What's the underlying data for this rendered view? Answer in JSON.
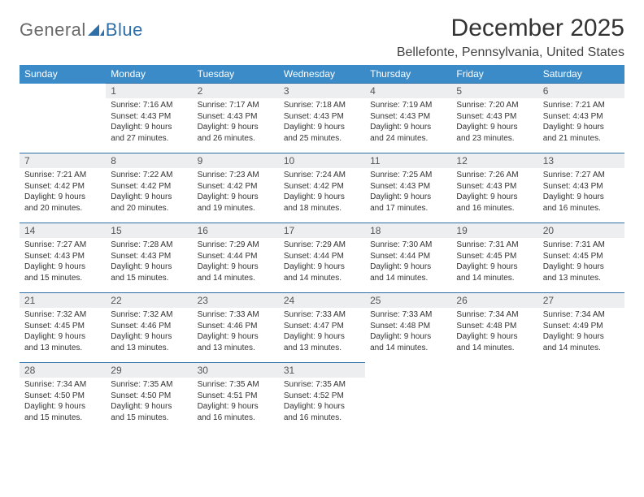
{
  "brand": {
    "part1": "General",
    "part2": "Blue"
  },
  "title": "December 2025",
  "location": "Bellefonte, Pennsylvania, United States",
  "columns": [
    "Sunday",
    "Monday",
    "Tuesday",
    "Wednesday",
    "Thursday",
    "Friday",
    "Saturday"
  ],
  "colors": {
    "header_bg": "#3b8bc9",
    "header_text": "#ffffff",
    "daynum_bg": "#eceeef",
    "rule": "#2f6fa8",
    "body_text": "#333333"
  },
  "weeks": [
    [
      {
        "blank": true
      },
      {
        "n": "1",
        "sr": "Sunrise: 7:16 AM",
        "ss": "Sunset: 4:43 PM",
        "d1": "Daylight: 9 hours",
        "d2": "and 27 minutes."
      },
      {
        "n": "2",
        "sr": "Sunrise: 7:17 AM",
        "ss": "Sunset: 4:43 PM",
        "d1": "Daylight: 9 hours",
        "d2": "and 26 minutes."
      },
      {
        "n": "3",
        "sr": "Sunrise: 7:18 AM",
        "ss": "Sunset: 4:43 PM",
        "d1": "Daylight: 9 hours",
        "d2": "and 25 minutes."
      },
      {
        "n": "4",
        "sr": "Sunrise: 7:19 AM",
        "ss": "Sunset: 4:43 PM",
        "d1": "Daylight: 9 hours",
        "d2": "and 24 minutes."
      },
      {
        "n": "5",
        "sr": "Sunrise: 7:20 AM",
        "ss": "Sunset: 4:43 PM",
        "d1": "Daylight: 9 hours",
        "d2": "and 23 minutes."
      },
      {
        "n": "6",
        "sr": "Sunrise: 7:21 AM",
        "ss": "Sunset: 4:43 PM",
        "d1": "Daylight: 9 hours",
        "d2": "and 21 minutes."
      }
    ],
    [
      {
        "n": "7",
        "sr": "Sunrise: 7:21 AM",
        "ss": "Sunset: 4:42 PM",
        "d1": "Daylight: 9 hours",
        "d2": "and 20 minutes."
      },
      {
        "n": "8",
        "sr": "Sunrise: 7:22 AM",
        "ss": "Sunset: 4:42 PM",
        "d1": "Daylight: 9 hours",
        "d2": "and 20 minutes."
      },
      {
        "n": "9",
        "sr": "Sunrise: 7:23 AM",
        "ss": "Sunset: 4:42 PM",
        "d1": "Daylight: 9 hours",
        "d2": "and 19 minutes."
      },
      {
        "n": "10",
        "sr": "Sunrise: 7:24 AM",
        "ss": "Sunset: 4:42 PM",
        "d1": "Daylight: 9 hours",
        "d2": "and 18 minutes."
      },
      {
        "n": "11",
        "sr": "Sunrise: 7:25 AM",
        "ss": "Sunset: 4:43 PM",
        "d1": "Daylight: 9 hours",
        "d2": "and 17 minutes."
      },
      {
        "n": "12",
        "sr": "Sunrise: 7:26 AM",
        "ss": "Sunset: 4:43 PM",
        "d1": "Daylight: 9 hours",
        "d2": "and 16 minutes."
      },
      {
        "n": "13",
        "sr": "Sunrise: 7:27 AM",
        "ss": "Sunset: 4:43 PM",
        "d1": "Daylight: 9 hours",
        "d2": "and 16 minutes."
      }
    ],
    [
      {
        "n": "14",
        "sr": "Sunrise: 7:27 AM",
        "ss": "Sunset: 4:43 PM",
        "d1": "Daylight: 9 hours",
        "d2": "and 15 minutes."
      },
      {
        "n": "15",
        "sr": "Sunrise: 7:28 AM",
        "ss": "Sunset: 4:43 PM",
        "d1": "Daylight: 9 hours",
        "d2": "and 15 minutes."
      },
      {
        "n": "16",
        "sr": "Sunrise: 7:29 AM",
        "ss": "Sunset: 4:44 PM",
        "d1": "Daylight: 9 hours",
        "d2": "and 14 minutes."
      },
      {
        "n": "17",
        "sr": "Sunrise: 7:29 AM",
        "ss": "Sunset: 4:44 PM",
        "d1": "Daylight: 9 hours",
        "d2": "and 14 minutes."
      },
      {
        "n": "18",
        "sr": "Sunrise: 7:30 AM",
        "ss": "Sunset: 4:44 PM",
        "d1": "Daylight: 9 hours",
        "d2": "and 14 minutes."
      },
      {
        "n": "19",
        "sr": "Sunrise: 7:31 AM",
        "ss": "Sunset: 4:45 PM",
        "d1": "Daylight: 9 hours",
        "d2": "and 14 minutes."
      },
      {
        "n": "20",
        "sr": "Sunrise: 7:31 AM",
        "ss": "Sunset: 4:45 PM",
        "d1": "Daylight: 9 hours",
        "d2": "and 13 minutes."
      }
    ],
    [
      {
        "n": "21",
        "sr": "Sunrise: 7:32 AM",
        "ss": "Sunset: 4:45 PM",
        "d1": "Daylight: 9 hours",
        "d2": "and 13 minutes."
      },
      {
        "n": "22",
        "sr": "Sunrise: 7:32 AM",
        "ss": "Sunset: 4:46 PM",
        "d1": "Daylight: 9 hours",
        "d2": "and 13 minutes."
      },
      {
        "n": "23",
        "sr": "Sunrise: 7:33 AM",
        "ss": "Sunset: 4:46 PM",
        "d1": "Daylight: 9 hours",
        "d2": "and 13 minutes."
      },
      {
        "n": "24",
        "sr": "Sunrise: 7:33 AM",
        "ss": "Sunset: 4:47 PM",
        "d1": "Daylight: 9 hours",
        "d2": "and 13 minutes."
      },
      {
        "n": "25",
        "sr": "Sunrise: 7:33 AM",
        "ss": "Sunset: 4:48 PM",
        "d1": "Daylight: 9 hours",
        "d2": "and 14 minutes."
      },
      {
        "n": "26",
        "sr": "Sunrise: 7:34 AM",
        "ss": "Sunset: 4:48 PM",
        "d1": "Daylight: 9 hours",
        "d2": "and 14 minutes."
      },
      {
        "n": "27",
        "sr": "Sunrise: 7:34 AM",
        "ss": "Sunset: 4:49 PM",
        "d1": "Daylight: 9 hours",
        "d2": "and 14 minutes."
      }
    ],
    [
      {
        "n": "28",
        "sr": "Sunrise: 7:34 AM",
        "ss": "Sunset: 4:50 PM",
        "d1": "Daylight: 9 hours",
        "d2": "and 15 minutes."
      },
      {
        "n": "29",
        "sr": "Sunrise: 7:35 AM",
        "ss": "Sunset: 4:50 PM",
        "d1": "Daylight: 9 hours",
        "d2": "and 15 minutes."
      },
      {
        "n": "30",
        "sr": "Sunrise: 7:35 AM",
        "ss": "Sunset: 4:51 PM",
        "d1": "Daylight: 9 hours",
        "d2": "and 16 minutes."
      },
      {
        "n": "31",
        "sr": "Sunrise: 7:35 AM",
        "ss": "Sunset: 4:52 PM",
        "d1": "Daylight: 9 hours",
        "d2": "and 16 minutes."
      },
      {
        "blank": true
      },
      {
        "blank": true
      },
      {
        "blank": true
      }
    ]
  ]
}
